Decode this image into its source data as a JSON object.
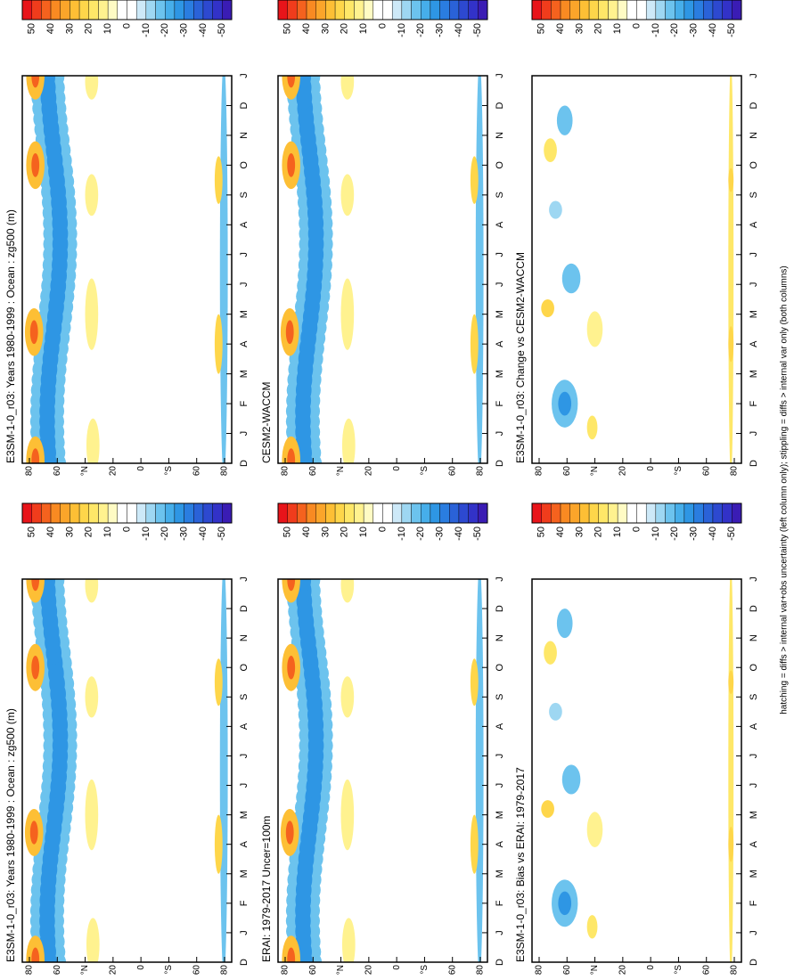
{
  "panels": [
    {
      "title": "E3SM-1-0_r03: Years 1980-1999 : Ocean : zg500 (m)",
      "kind": "mean",
      "months": [
        "D",
        "J",
        "F",
        "M",
        "A",
        "M",
        "J",
        "J",
        "A",
        "S",
        "O",
        "N",
        "D",
        "J"
      ],
      "latitudes": [
        "80",
        "60",
        "°N",
        "20",
        "0",
        "°S",
        "60",
        "80"
      ],
      "colorbar": [
        50,
        40,
        30,
        20,
        10,
        0,
        -10,
        -20,
        -30,
        -40,
        -50
      ]
    },
    {
      "title": "E3SM-1-0_r03: Years 1980-1999 : Ocean : zg500 (m)",
      "kind": "mean",
      "months": [
        "D",
        "J",
        "F",
        "M",
        "A",
        "M",
        "J",
        "J",
        "A",
        "S",
        "O",
        "N",
        "D",
        "J"
      ],
      "latitudes": [
        "80",
        "60",
        "°N",
        "20",
        "0",
        "°S",
        "60",
        "80"
      ],
      "colorbar": [
        50,
        40,
        30,
        20,
        10,
        0,
        -10,
        -20,
        -30,
        -40,
        -50
      ]
    },
    {
      "title": "ERAI: 1979-2017 Uncer=100m",
      "kind": "mean",
      "months": [
        "D",
        "J",
        "F",
        "M",
        "A",
        "M",
        "J",
        "J",
        "A",
        "S",
        "O",
        "N",
        "D",
        "J"
      ],
      "latitudes": [
        "80",
        "60",
        "°N",
        "20",
        "0",
        "°S",
        "60",
        "80"
      ],
      "colorbar": [
        50,
        40,
        30,
        20,
        10,
        0,
        -10,
        -20,
        -30,
        -40,
        -50
      ]
    },
    {
      "title": "CESM2-WACCM",
      "kind": "mean",
      "months": [
        "D",
        "J",
        "F",
        "M",
        "A",
        "M",
        "J",
        "J",
        "A",
        "S",
        "O",
        "N",
        "D",
        "J"
      ],
      "latitudes": [
        "80",
        "60",
        "°N",
        "20",
        "0",
        "°S",
        "60",
        "80"
      ],
      "colorbar": [
        50,
        40,
        30,
        20,
        10,
        0,
        -10,
        -20,
        -30,
        -40,
        -50
      ]
    },
    {
      "title": "E3SM-1-0_r03: Bias vs ERAI: 1979-2017",
      "kind": "diff",
      "months": [
        "D",
        "J",
        "F",
        "M",
        "A",
        "M",
        "J",
        "J",
        "A",
        "S",
        "O",
        "N",
        "D",
        "J"
      ],
      "latitudes": [
        "80",
        "60",
        "°N",
        "20",
        "0",
        "°S",
        "60",
        "80"
      ],
      "colorbar": [
        50,
        40,
        30,
        20,
        10,
        0,
        -10,
        -20,
        -30,
        -40,
        -50
      ]
    },
    {
      "title": "E3SM-1-0_r03: Change vs CESM2-WACCM",
      "kind": "diff",
      "months": [
        "D",
        "J",
        "F",
        "M",
        "A",
        "M",
        "J",
        "J",
        "A",
        "S",
        "O",
        "N",
        "D",
        "J"
      ],
      "latitudes": [
        "80",
        "60",
        "°N",
        "20",
        "0",
        "°S",
        "60",
        "80"
      ],
      "colorbar": [
        50,
        40,
        30,
        20,
        10,
        0,
        -10,
        -20,
        -30,
        -40,
        -50
      ]
    }
  ],
  "colors": [
    "#e8141a",
    "#f03c1c",
    "#f5621e",
    "#f98a22",
    "#fba52a",
    "#fdbf35",
    "#fed64a",
    "#fee768",
    "#fff28f",
    "#fffbc4",
    "#ffffff",
    "#ffffff",
    "#cde9f8",
    "#9ed7f2",
    "#6cc3ee",
    "#46aeea",
    "#2e96e4",
    "#2a7de0",
    "#2a62d8",
    "#2d49d0",
    "#3232c8",
    "#3a1cb4"
  ],
  "footer": "hatching = diffs > internal var+obs uncertainty (left column only); stippling = diffs > internal var only (both columns)"
}
